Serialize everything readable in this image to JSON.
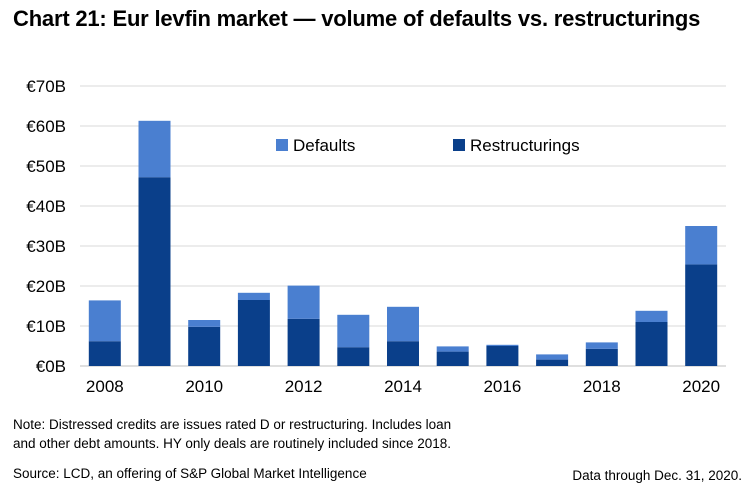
{
  "title": "Chart 21: Eur levfin market — volume of defaults vs. restructurings",
  "note_line1": "Note: Distressed credits are issues rated D or restructuring. Includes loan",
  "note_line2": "and other debt amounts. HY only deals are routinely included since 2018.",
  "source": "Source: LCD, an offering of S&P Global Market Intelligence",
  "data_through": "Data through Dec. 31, 2020.",
  "colors": {
    "defaults": "#4a7fd0",
    "restructurings": "#0a3f8a",
    "grid": "#d9d9d9"
  },
  "chart_data": {
    "type": "bar",
    "stacked": true,
    "categories": [
      "2008",
      "2009",
      "2010",
      "2011",
      "2012",
      "2013",
      "2014",
      "2015",
      "2016",
      "2017",
      "2018",
      "2019",
      "2020"
    ],
    "x_tick_labels": [
      "2008",
      "",
      "2010",
      "",
      "2012",
      "",
      "2014",
      "",
      "2016",
      "",
      "2018",
      "",
      "2020"
    ],
    "y_tick_labels": [
      "€0B",
      "€10B",
      "€20B",
      "€30B",
      "€40B",
      "€50B",
      "€60B",
      "€70B"
    ],
    "ylim": [
      0,
      70
    ],
    "ylabel": "",
    "xlabel": "",
    "grid": true,
    "legend_position": "top-center",
    "series": [
      {
        "name": "Restructurings",
        "color_key": "restructurings",
        "values": [
          6.2,
          47.2,
          9.8,
          16.5,
          11.8,
          4.7,
          6.2,
          3.6,
          5.0,
          1.6,
          4.3,
          11.0,
          25.4
        ]
      },
      {
        "name": "Defaults",
        "color_key": "defaults",
        "values": [
          10.2,
          14.1,
          1.7,
          1.8,
          8.3,
          8.1,
          8.6,
          1.3,
          0.3,
          1.3,
          1.6,
          2.8,
          9.6
        ]
      }
    ]
  }
}
